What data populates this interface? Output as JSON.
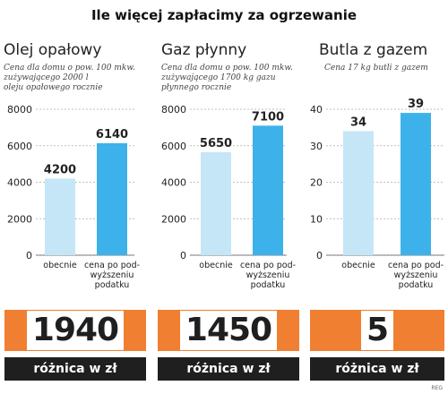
{
  "title": "Ile więcej zapłacimy za ogrzewanie",
  "credit": "REG",
  "colors": {
    "bar_before": "#c5e6f7",
    "bar_after": "#3db2ea",
    "accent": "#f07f31",
    "label_bg": "#1f1f1f"
  },
  "chart_data": [
    {
      "type": "bar",
      "title": "Olej opałowy",
      "subtitle": "Cena dla domu o pow. 100 mkw. zużywającego 2000 l oleju opałowego rocznie",
      "categories": [
        "obecnie",
        "cena po podwyższeniu podatku"
      ],
      "values": [
        4200,
        6140
      ],
      "value_labels": [
        "4200",
        "6140"
      ],
      "ylim": [
        0,
        8000
      ],
      "yticks": [
        "0",
        "2000",
        "4000",
        "6000",
        "8000"
      ],
      "grid": true,
      "difference": "1940",
      "difference_label": "różnica w zł"
    },
    {
      "type": "bar",
      "title": "Gaz płynny",
      "subtitle": "Cena dla domu o pow. 100 mkw. zużywającego 1700 kg gazu płynnego rocznie",
      "categories": [
        "obecnie",
        "cena po podwyższeniu podatku"
      ],
      "values": [
        5650,
        7100
      ],
      "value_labels": [
        "5650",
        "7100"
      ],
      "ylim": [
        0,
        8000
      ],
      "yticks": [
        "0",
        "2000",
        "4000",
        "6000",
        "8000"
      ],
      "grid": true,
      "difference": "1450",
      "difference_label": "różnica w zł"
    },
    {
      "type": "bar",
      "title": "Butla z gazem",
      "subtitle": "Cena 17 kg butli z gazem",
      "categories": [
        "obecnie",
        "cena po podwyższeniu podatku"
      ],
      "values": [
        34,
        39
      ],
      "value_labels": [
        "34",
        "39"
      ],
      "ylim": [
        0,
        40
      ],
      "yticks": [
        "0",
        "10",
        "20",
        "30",
        "40"
      ],
      "grid": true,
      "difference": "5",
      "difference_label": "różnica w zł"
    }
  ]
}
